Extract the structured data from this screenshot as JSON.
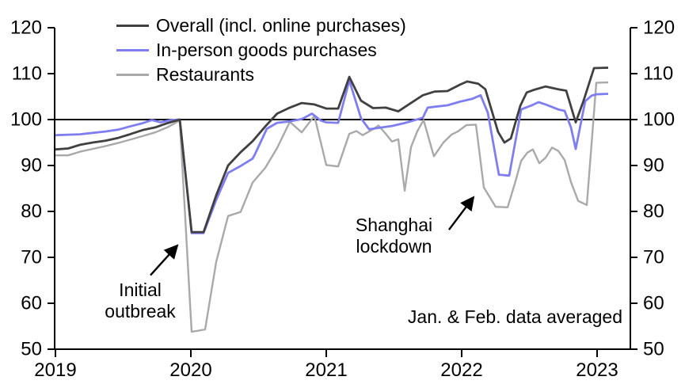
{
  "chart_data": {
    "type": "line",
    "title": "",
    "note": "Jan. & Feb. data averaged",
    "x_axis": {
      "ticks": [
        "2019",
        "2020",
        "2021",
        "2022",
        "2023"
      ],
      "min": 2019,
      "max": 2023.25
    },
    "y_axis": {
      "ticks": [
        120,
        110,
        100,
        90,
        80,
        70,
        60,
        50
      ],
      "min": 50,
      "max": 120,
      "sides": "both"
    },
    "reference_line": 100,
    "grid": "off",
    "legend_position": "top-left-inside",
    "axis_color": "#000000",
    "series": [
      {
        "name": "Overall (incl. online purchases)",
        "color": "#404040",
        "stroke_width": 2.8,
        "points": [
          [
            2019.0,
            93.5
          ],
          [
            2019.094,
            93.7
          ],
          [
            2019.181,
            94.5
          ],
          [
            2019.275,
            95.0
          ],
          [
            2019.368,
            95.4
          ],
          [
            2019.462,
            96.0
          ],
          [
            2019.55,
            96.8
          ],
          [
            2019.643,
            97.7
          ],
          [
            2019.737,
            98.3
          ],
          [
            2019.825,
            99.2
          ],
          [
            2019.918,
            100.0
          ],
          [
            2020.006,
            75.5
          ],
          [
            2020.094,
            75.5
          ],
          [
            2020.187,
            83.5
          ],
          [
            2020.275,
            90.0
          ],
          [
            2020.368,
            92.9
          ],
          [
            2020.456,
            95.3
          ],
          [
            2020.55,
            98.5
          ],
          [
            2020.637,
            101.3
          ],
          [
            2020.731,
            102.6
          ],
          [
            2020.819,
            103.6
          ],
          [
            2020.912,
            103.3
          ],
          [
            2021.0,
            102.4
          ],
          [
            2021.088,
            102.4
          ],
          [
            2021.17,
            109.3
          ],
          [
            2021.257,
            104.1
          ],
          [
            2021.345,
            102.5
          ],
          [
            2021.439,
            102.6
          ],
          [
            2021.532,
            101.8
          ],
          [
            2021.62,
            103.5
          ],
          [
            2021.713,
            105.3
          ],
          [
            2021.801,
            106.1
          ],
          [
            2021.895,
            106.2
          ],
          [
            2021.988,
            107.6
          ],
          [
            2022.041,
            108.3
          ],
          [
            2022.123,
            107.8
          ],
          [
            2022.175,
            106.6
          ],
          [
            2022.269,
            97.3
          ],
          [
            2022.316,
            95.0
          ],
          [
            2022.363,
            95.9
          ],
          [
            2022.433,
            103.0
          ],
          [
            2022.48,
            105.9
          ],
          [
            2022.526,
            106.4
          ],
          [
            2022.62,
            107.2
          ],
          [
            2022.713,
            106.6
          ],
          [
            2022.772,
            106.3
          ],
          [
            2022.842,
            99.4
          ],
          [
            2022.901,
            104.2
          ],
          [
            2022.977,
            111.2
          ],
          [
            2023.082,
            111.3
          ]
        ]
      },
      {
        "name": "In-person goods purchases",
        "color": "#7e7ef0",
        "stroke_width": 2.8,
        "points": [
          [
            2019.0,
            96.6
          ],
          [
            2019.094,
            96.7
          ],
          [
            2019.181,
            96.8
          ],
          [
            2019.275,
            97.1
          ],
          [
            2019.368,
            97.4
          ],
          [
            2019.462,
            97.8
          ],
          [
            2019.55,
            98.5
          ],
          [
            2019.643,
            99.2
          ],
          [
            2019.713,
            99.9
          ],
          [
            2019.778,
            99.4
          ],
          [
            2019.848,
            99.9
          ],
          [
            2019.918,
            100.0
          ],
          [
            2020.006,
            75.3
          ],
          [
            2020.094,
            75.3
          ],
          [
            2020.187,
            82.5
          ],
          [
            2020.275,
            88.4
          ],
          [
            2020.368,
            89.9
          ],
          [
            2020.456,
            91.5
          ],
          [
            2020.474,
            92.5
          ],
          [
            2020.561,
            98.0
          ],
          [
            2020.637,
            99.3
          ],
          [
            2020.731,
            99.6
          ],
          [
            2020.819,
            100.1
          ],
          [
            2020.895,
            101.3
          ],
          [
            2020.959,
            99.8
          ],
          [
            2021.0,
            99.4
          ],
          [
            2021.088,
            99.3
          ],
          [
            2021.17,
            108.5
          ],
          [
            2021.257,
            100.3
          ],
          [
            2021.316,
            97.9
          ],
          [
            2021.392,
            98.2
          ],
          [
            2021.485,
            98.6
          ],
          [
            2021.573,
            99.2
          ],
          [
            2021.655,
            99.9
          ],
          [
            2021.713,
            100.4
          ],
          [
            2021.749,
            102.6
          ],
          [
            2021.801,
            102.8
          ],
          [
            2021.895,
            103.1
          ],
          [
            2021.988,
            103.9
          ],
          [
            2022.076,
            104.5
          ],
          [
            2022.14,
            105.3
          ],
          [
            2022.193,
            101.5
          ],
          [
            2022.275,
            88.0
          ],
          [
            2022.351,
            87.8
          ],
          [
            2022.439,
            102.2
          ],
          [
            2022.526,
            103.2
          ],
          [
            2022.567,
            103.8
          ],
          [
            2022.62,
            103.3
          ],
          [
            2022.713,
            102.2
          ],
          [
            2022.76,
            101.9
          ],
          [
            2022.807,
            98.3
          ],
          [
            2022.842,
            93.6
          ],
          [
            2022.912,
            104.0
          ],
          [
            2022.959,
            105.2
          ],
          [
            2022.994,
            105.5
          ],
          [
            2023.082,
            105.6
          ]
        ]
      },
      {
        "name": "Restaurants",
        "color": "#a9a9a9",
        "stroke_width": 2.4,
        "points": [
          [
            2019.0,
            92.2
          ],
          [
            2019.094,
            92.2
          ],
          [
            2019.181,
            93.0
          ],
          [
            2019.275,
            93.6
          ],
          [
            2019.368,
            94.2
          ],
          [
            2019.462,
            94.9
          ],
          [
            2019.55,
            95.6
          ],
          [
            2019.643,
            96.4
          ],
          [
            2019.737,
            97.2
          ],
          [
            2019.825,
            98.3
          ],
          [
            2019.918,
            99.8
          ],
          [
            2020.006,
            53.8
          ],
          [
            2020.105,
            54.3
          ],
          [
            2020.187,
            69.0
          ],
          [
            2020.275,
            79.0
          ],
          [
            2020.368,
            79.9
          ],
          [
            2020.456,
            86.3
          ],
          [
            2020.55,
            89.5
          ],
          [
            2020.637,
            93.8
          ],
          [
            2020.731,
            99.5
          ],
          [
            2020.819,
            97.2
          ],
          [
            2020.912,
            100.8
          ],
          [
            2021.0,
            90.1
          ],
          [
            2021.088,
            89.8
          ],
          [
            2021.17,
            96.9
          ],
          [
            2021.222,
            97.5
          ],
          [
            2021.269,
            96.6
          ],
          [
            2021.345,
            97.9
          ],
          [
            2021.386,
            98.7
          ],
          [
            2021.439,
            96.9
          ],
          [
            2021.485,
            95.2
          ],
          [
            2021.532,
            95.7
          ],
          [
            2021.579,
            84.5
          ],
          [
            2021.626,
            94.0
          ],
          [
            2021.673,
            97.5
          ],
          [
            2021.719,
            99.9
          ],
          [
            2021.795,
            92.0
          ],
          [
            2021.865,
            95.0
          ],
          [
            2021.924,
            96.7
          ],
          [
            2021.971,
            97.4
          ],
          [
            2022.035,
            98.8
          ],
          [
            2022.105,
            98.9
          ],
          [
            2022.164,
            85.2
          ],
          [
            2022.251,
            81.0
          ],
          [
            2022.339,
            80.9
          ],
          [
            2022.392,
            86.0
          ],
          [
            2022.439,
            91.0
          ],
          [
            2022.485,
            92.8
          ],
          [
            2022.526,
            93.5
          ],
          [
            2022.573,
            90.5
          ],
          [
            2022.62,
            91.7
          ],
          [
            2022.667,
            93.9
          ],
          [
            2022.713,
            93.2
          ],
          [
            2022.76,
            91.2
          ],
          [
            2022.807,
            86.4
          ],
          [
            2022.86,
            82.3
          ],
          [
            2022.924,
            81.4
          ],
          [
            2022.994,
            108.0
          ],
          [
            2023.082,
            108.1
          ]
        ]
      }
    ],
    "annotations": [
      {
        "text": "Initial\noutbreak",
        "anchor": [
          2019.626,
          60.6
        ],
        "arrow": {
          "from": [
            2019.702,
            66.1
          ],
          "to": [
            2019.895,
            72.4
          ]
        }
      },
      {
        "text": "Shanghai\nlockdown",
        "anchor": [
          2021.5,
          74.7
        ],
        "arrow": {
          "from": [
            2021.906,
            76.0
          ],
          "to": [
            2022.082,
            82.9
          ]
        }
      }
    ]
  }
}
